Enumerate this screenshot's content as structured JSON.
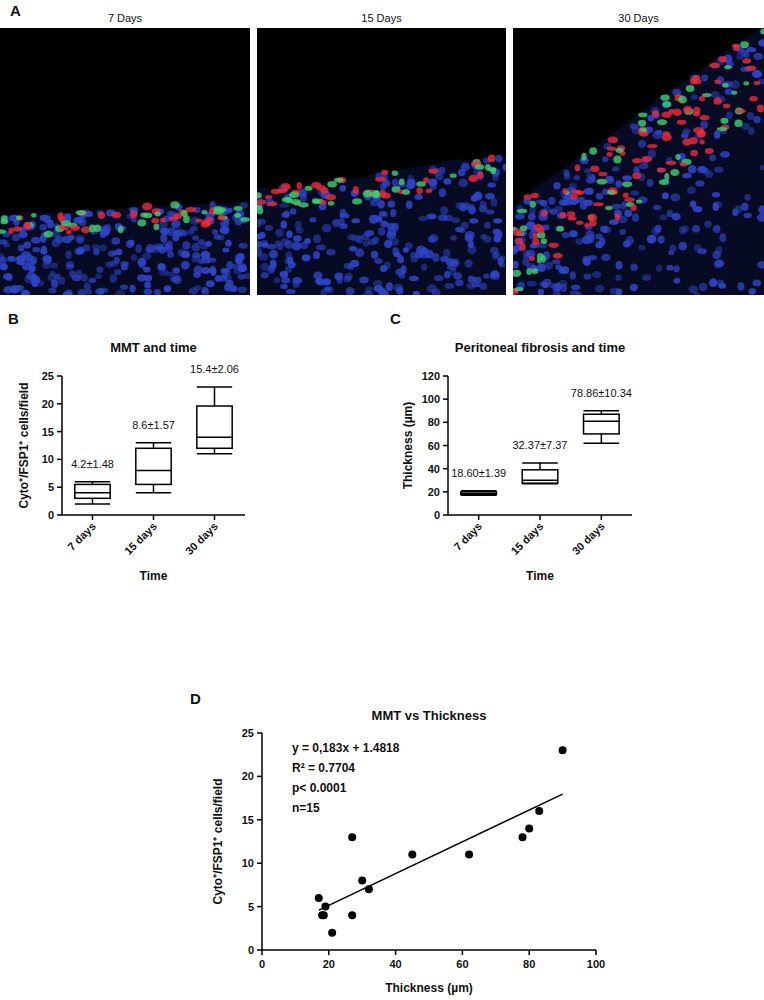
{
  "images": {
    "panel": "A",
    "titles": [
      "7 Days",
      "15 Days",
      "30 Days"
    ]
  },
  "chart_data": [
    {
      "type": "box",
      "panel": "B",
      "title": "MMT and time",
      "x_label": "Time",
      "y_label": "Cyto⁺/FSP1⁺ cells/field",
      "categories": [
        "7 days",
        "15 days",
        "30 days"
      ],
      "min": [
        2,
        4,
        11
      ],
      "q1": [
        3,
        5.5,
        12
      ],
      "median": [
        4,
        8,
        14
      ],
      "q3": [
        5.5,
        12,
        19.6
      ],
      "max": [
        6,
        13,
        23
      ],
      "annotations": [
        "4.2±1.48",
        "8.6±1.57",
        "15.4±2.06"
      ],
      "ylim": [
        0,
        25
      ],
      "yticks": [
        0,
        5,
        10,
        15,
        20,
        25
      ]
    },
    {
      "type": "box",
      "panel": "C",
      "title": "Peritoneal fibrosis and time",
      "x_label": "Time",
      "y_label": "Thickness (µm)",
      "categories": [
        "7 days",
        "15 days",
        "30 days"
      ],
      "min": [
        17,
        27,
        62
      ],
      "q1": [
        17.6,
        27.5,
        70
      ],
      "median": [
        18.6,
        30,
        81
      ],
      "q3": [
        20,
        39,
        87
      ],
      "max": [
        21,
        45,
        90
      ],
      "annotations": [
        "18.60±1.39",
        "32.37±7.37",
        "78.86±10.34"
      ],
      "ylim": [
        0,
        120
      ],
      "yticks": [
        0,
        20,
        40,
        60,
        80,
        100,
        120
      ]
    },
    {
      "type": "scatter",
      "panel": "D",
      "title": "MMT vs Thickness",
      "x_label": "Thickness (µm)",
      "y_label": "Cyto⁺/FSP1⁺ cells/field",
      "x": [
        17,
        18,
        19,
        18.5,
        21,
        27,
        27,
        30,
        32,
        45,
        62,
        78,
        80,
        83,
        90
      ],
      "values": [
        6,
        4,
        5,
        4,
        2,
        13,
        4,
        8,
        7,
        11,
        11,
        13,
        14,
        16,
        23
      ],
      "fit": {
        "slope": 0.183,
        "intercept": 1.4818,
        "x_range": [
          17,
          90
        ]
      },
      "annotations": [
        "y = 0,183x + 1.4818",
        "R² = 0.7704",
        "p< 0.0001",
        "n=15"
      ],
      "xlim": [
        0,
        100
      ],
      "xticks": [
        0,
        20,
        40,
        60,
        80,
        100
      ],
      "ylim": [
        0,
        25
      ],
      "yticks": [
        0,
        5,
        10,
        15,
        20,
        25
      ]
    }
  ]
}
